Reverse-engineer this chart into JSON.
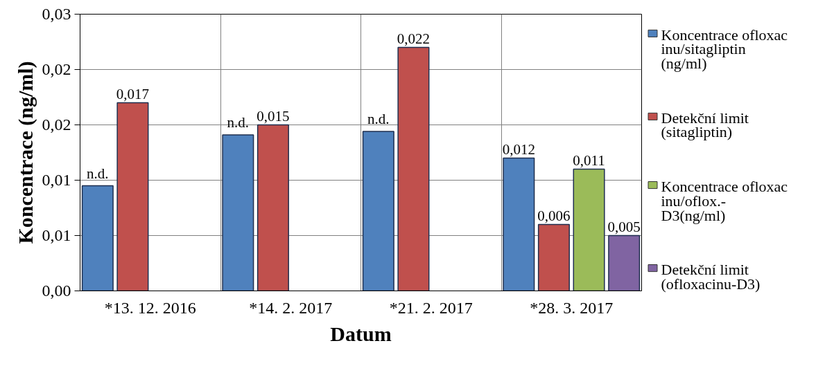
{
  "chart_data": {
    "type": "bar",
    "xlabel": "Datum",
    "ylabel": "Koncentrace (ng/ml)",
    "categories": [
      "*13. 12. 2016",
      "*14. 2. 2017",
      "*21. 2. 2017",
      "*28. 3. 2017"
    ],
    "series": [
      {
        "name": "Koncentrace ofloxacinu/sitagliptin (ng/ml)",
        "color": "#4f81bd",
        "values": [
          0.0095,
          0.0141,
          0.0144,
          0.012
        ],
        "value_labels": [
          "n.d.",
          "n.d.",
          "n.d.",
          "0,012"
        ]
      },
      {
        "name": "Detekční limit (sitagliptin)",
        "color": "#c0504d",
        "values": [
          0.017,
          0.015,
          0.022,
          0.006
        ],
        "value_labels": [
          "0,017",
          "0,015",
          "0,022",
          "0,006"
        ]
      },
      {
        "name": "Koncentrace ofloxacinu/oflox.-D3(ng/ml)",
        "color": "#9bbb59",
        "values": [
          null,
          null,
          null,
          0.011
        ],
        "value_labels": [
          null,
          null,
          null,
          "0,011"
        ]
      },
      {
        "name": "Detekční limit (ofloxacinu-D3)",
        "color": "#8064a2",
        "values": [
          null,
          null,
          null,
          0.005
        ],
        "value_labels": [
          null,
          null,
          null,
          "0,005"
        ]
      }
    ],
    "ylim": [
      0,
      0.025
    ],
    "yticks": [
      {
        "value": 0,
        "label": "0,00"
      },
      {
        "value": 0.005,
        "label": "0,01"
      },
      {
        "value": 0.01,
        "label": "0,01"
      },
      {
        "value": 0.015,
        "label": "0,02"
      },
      {
        "value": 0.02,
        "label": "0,02"
      },
      {
        "value": 0.025,
        "label": "0,03"
      }
    ],
    "grid": true,
    "legend": "right"
  }
}
